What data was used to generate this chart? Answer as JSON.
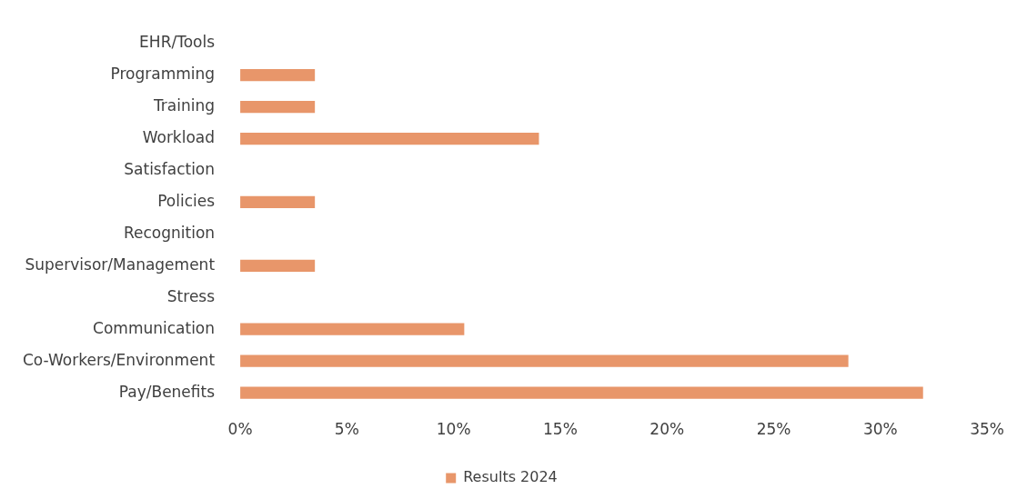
{
  "chart_data": {
    "type": "bar",
    "orientation": "horizontal",
    "categories": [
      "EHR/Tools",
      "Programming",
      "Training",
      "Workload",
      "Satisfaction",
      "Policies",
      "Recognition",
      "Supervisor/Management",
      "Stress",
      "Communication",
      "Co-Workers/Environment",
      "Pay/Benefits"
    ],
    "series": [
      {
        "name": "Results 2024",
        "color": "#e8966a",
        "values": [
          0,
          3.5,
          3.5,
          14,
          0,
          3.5,
          0,
          3.5,
          0,
          10.5,
          28.5,
          32
        ]
      }
    ],
    "xlim": [
      0,
      35
    ],
    "xticks": [
      {
        "value": 0,
        "label": "0%"
      },
      {
        "value": 5,
        "label": "5%"
      },
      {
        "value": 10,
        "label": "10%"
      },
      {
        "value": 15,
        "label": "15%"
      },
      {
        "value": 20,
        "label": "20%"
      },
      {
        "value": 25,
        "label": "25%"
      },
      {
        "value": 30,
        "label": "30%"
      },
      {
        "value": 35,
        "label": "35%"
      }
    ],
    "grid": false,
    "legend": "bottom"
  }
}
